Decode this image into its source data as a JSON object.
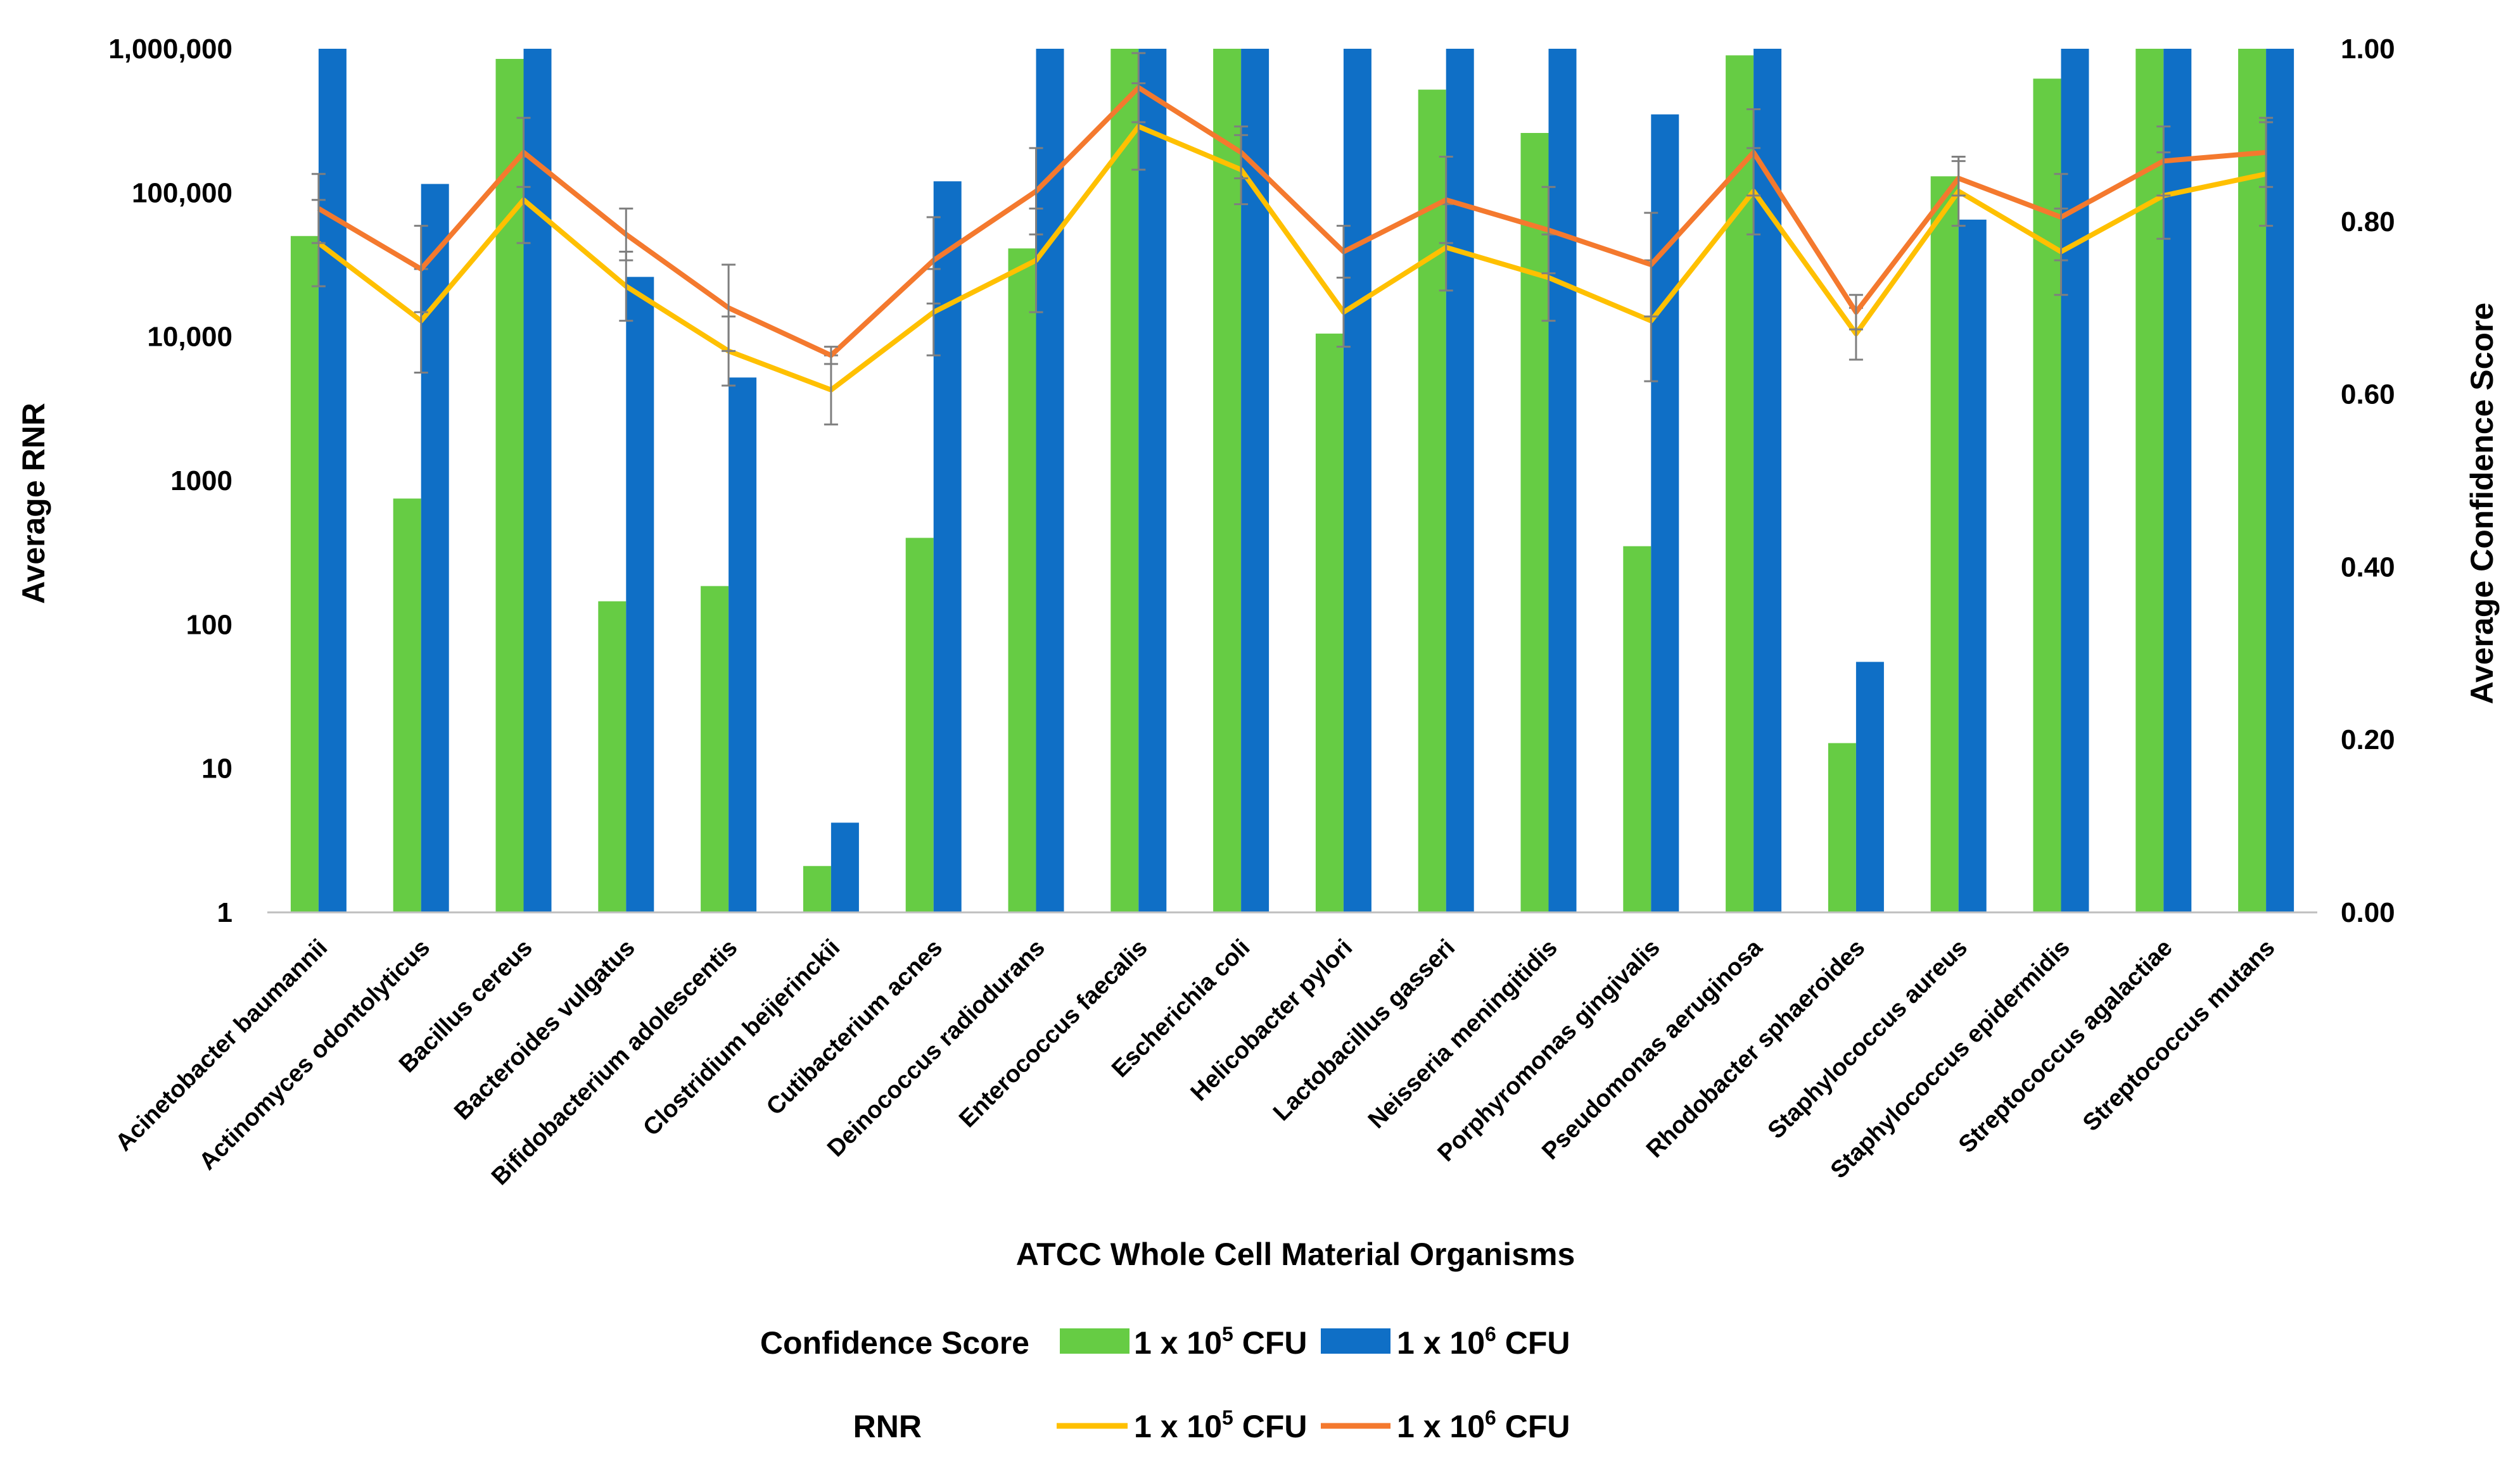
{
  "chart_data": {
    "type": "bar",
    "xlabel": "ATCC Whole Cell Material Organisms",
    "ylabel": "Average RNR",
    "y2label": "Average Confidence Score",
    "yscale": "log",
    "ylim": [
      1,
      1000000
    ],
    "y2lim": [
      0,
      1
    ],
    "y_ticks": [
      1,
      10,
      100,
      1000,
      10000,
      100000,
      1000000
    ],
    "y_tick_labels": [
      "1",
      "10",
      "100",
      "1000",
      "10,000",
      "100,000",
      "1,000,000"
    ],
    "y2_ticks": [
      0,
      0.2,
      0.4,
      0.6,
      0.8,
      1.0
    ],
    "y2_tick_labels": [
      "0.00",
      "0.20",
      "0.40",
      "0.60",
      "0.80",
      "1.00"
    ],
    "categories": [
      "Acinetobacter baumannii",
      "Actinomyces odontolyticus",
      "Bacillus cereus",
      "Bacteroides vulgatus",
      "Bifidobacterium adolescentis",
      "Clostridium beijerinckii",
      "Cutibacterium acnes",
      "Deinococcus radiodurans",
      "Enterococcus faecalis",
      "Escherichia coli",
      "Helicobacter pylori",
      "Lactobacillus gasseri",
      "Neisseria meningitidis",
      "Porphyromonas gingivalis",
      "Pseudomonas aeruginosa",
      "Rhodobacter sphaeroides",
      "Staphylococcus aureus",
      "Staphylococcus epidermidis",
      "Streptococcus agalactiae",
      "Streptococcus mutans"
    ],
    "bar_series": [
      {
        "name": "1 x 10^5 CFU",
        "color": "#66CC44",
        "values": [
          50000,
          750,
          850000,
          145,
          185,
          2.1,
          400,
          41000,
          1000000,
          1000000,
          10500,
          520000,
          260000,
          350,
          900000,
          15,
          130000,
          620000,
          1000000,
          1000000
        ]
      },
      {
        "name": "1 x 10^6 CFU",
        "color": "#0F6FC6",
        "values": [
          1000000,
          115000,
          1000000,
          26000,
          5200,
          4.2,
          120000,
          1000000,
          1000000,
          1000000,
          1000000,
          1000000,
          1000000,
          350000,
          1000000,
          55,
          65000,
          1000000,
          1000000,
          1000000
        ]
      }
    ],
    "line_series": [
      {
        "name": "1 x 10^5 CFU",
        "color": "#FFC000",
        "values": [
          0.775,
          0.685,
          0.825,
          0.725,
          0.65,
          0.605,
          0.695,
          0.755,
          0.91,
          0.86,
          0.695,
          0.77,
          0.735,
          0.685,
          0.835,
          0.67,
          0.835,
          0.765,
          0.83,
          0.855
        ],
        "errors": [
          0.05,
          0.06,
          0.05,
          0.04,
          0.04,
          0.04,
          0.05,
          0.06,
          0.05,
          0.04,
          0.04,
          0.05,
          0.05,
          0.07,
          0.05,
          0.03,
          0.04,
          0.05,
          0.05,
          0.06
        ]
      },
      {
        "name": "1 x 10^6 CFU",
        "color": "#F4792E",
        "values": [
          0.815,
          0.745,
          0.88,
          0.785,
          0.7,
          0.645,
          0.755,
          0.835,
          0.955,
          0.88,
          0.765,
          0.825,
          0.79,
          0.75,
          0.88,
          0.695,
          0.85,
          0.805,
          0.87,
          0.88
        ],
        "errors": [
          0.04,
          0.05,
          0.04,
          0.03,
          0.05,
          0.01,
          0.05,
          0.05,
          0.04,
          0.03,
          0.03,
          0.05,
          0.05,
          0.06,
          0.05,
          0.02,
          0.02,
          0.05,
          0.04,
          0.04
        ]
      }
    ]
  },
  "legend": {
    "confidence_label": "Confidence Score",
    "rnr_label": "RNR",
    "bar_green": {
      "prefix": "1 x 10",
      "exp": "5",
      "suffix": " CFU"
    },
    "bar_blue": {
      "prefix": "1 x 10",
      "exp": "6",
      "suffix": " CFU"
    },
    "line_yellow": {
      "prefix": "1 x 10",
      "exp": "5",
      "suffix": " CFU"
    },
    "line_orange": {
      "prefix": "1 x 10",
      "exp": "6",
      "suffix": " CFU"
    }
  }
}
